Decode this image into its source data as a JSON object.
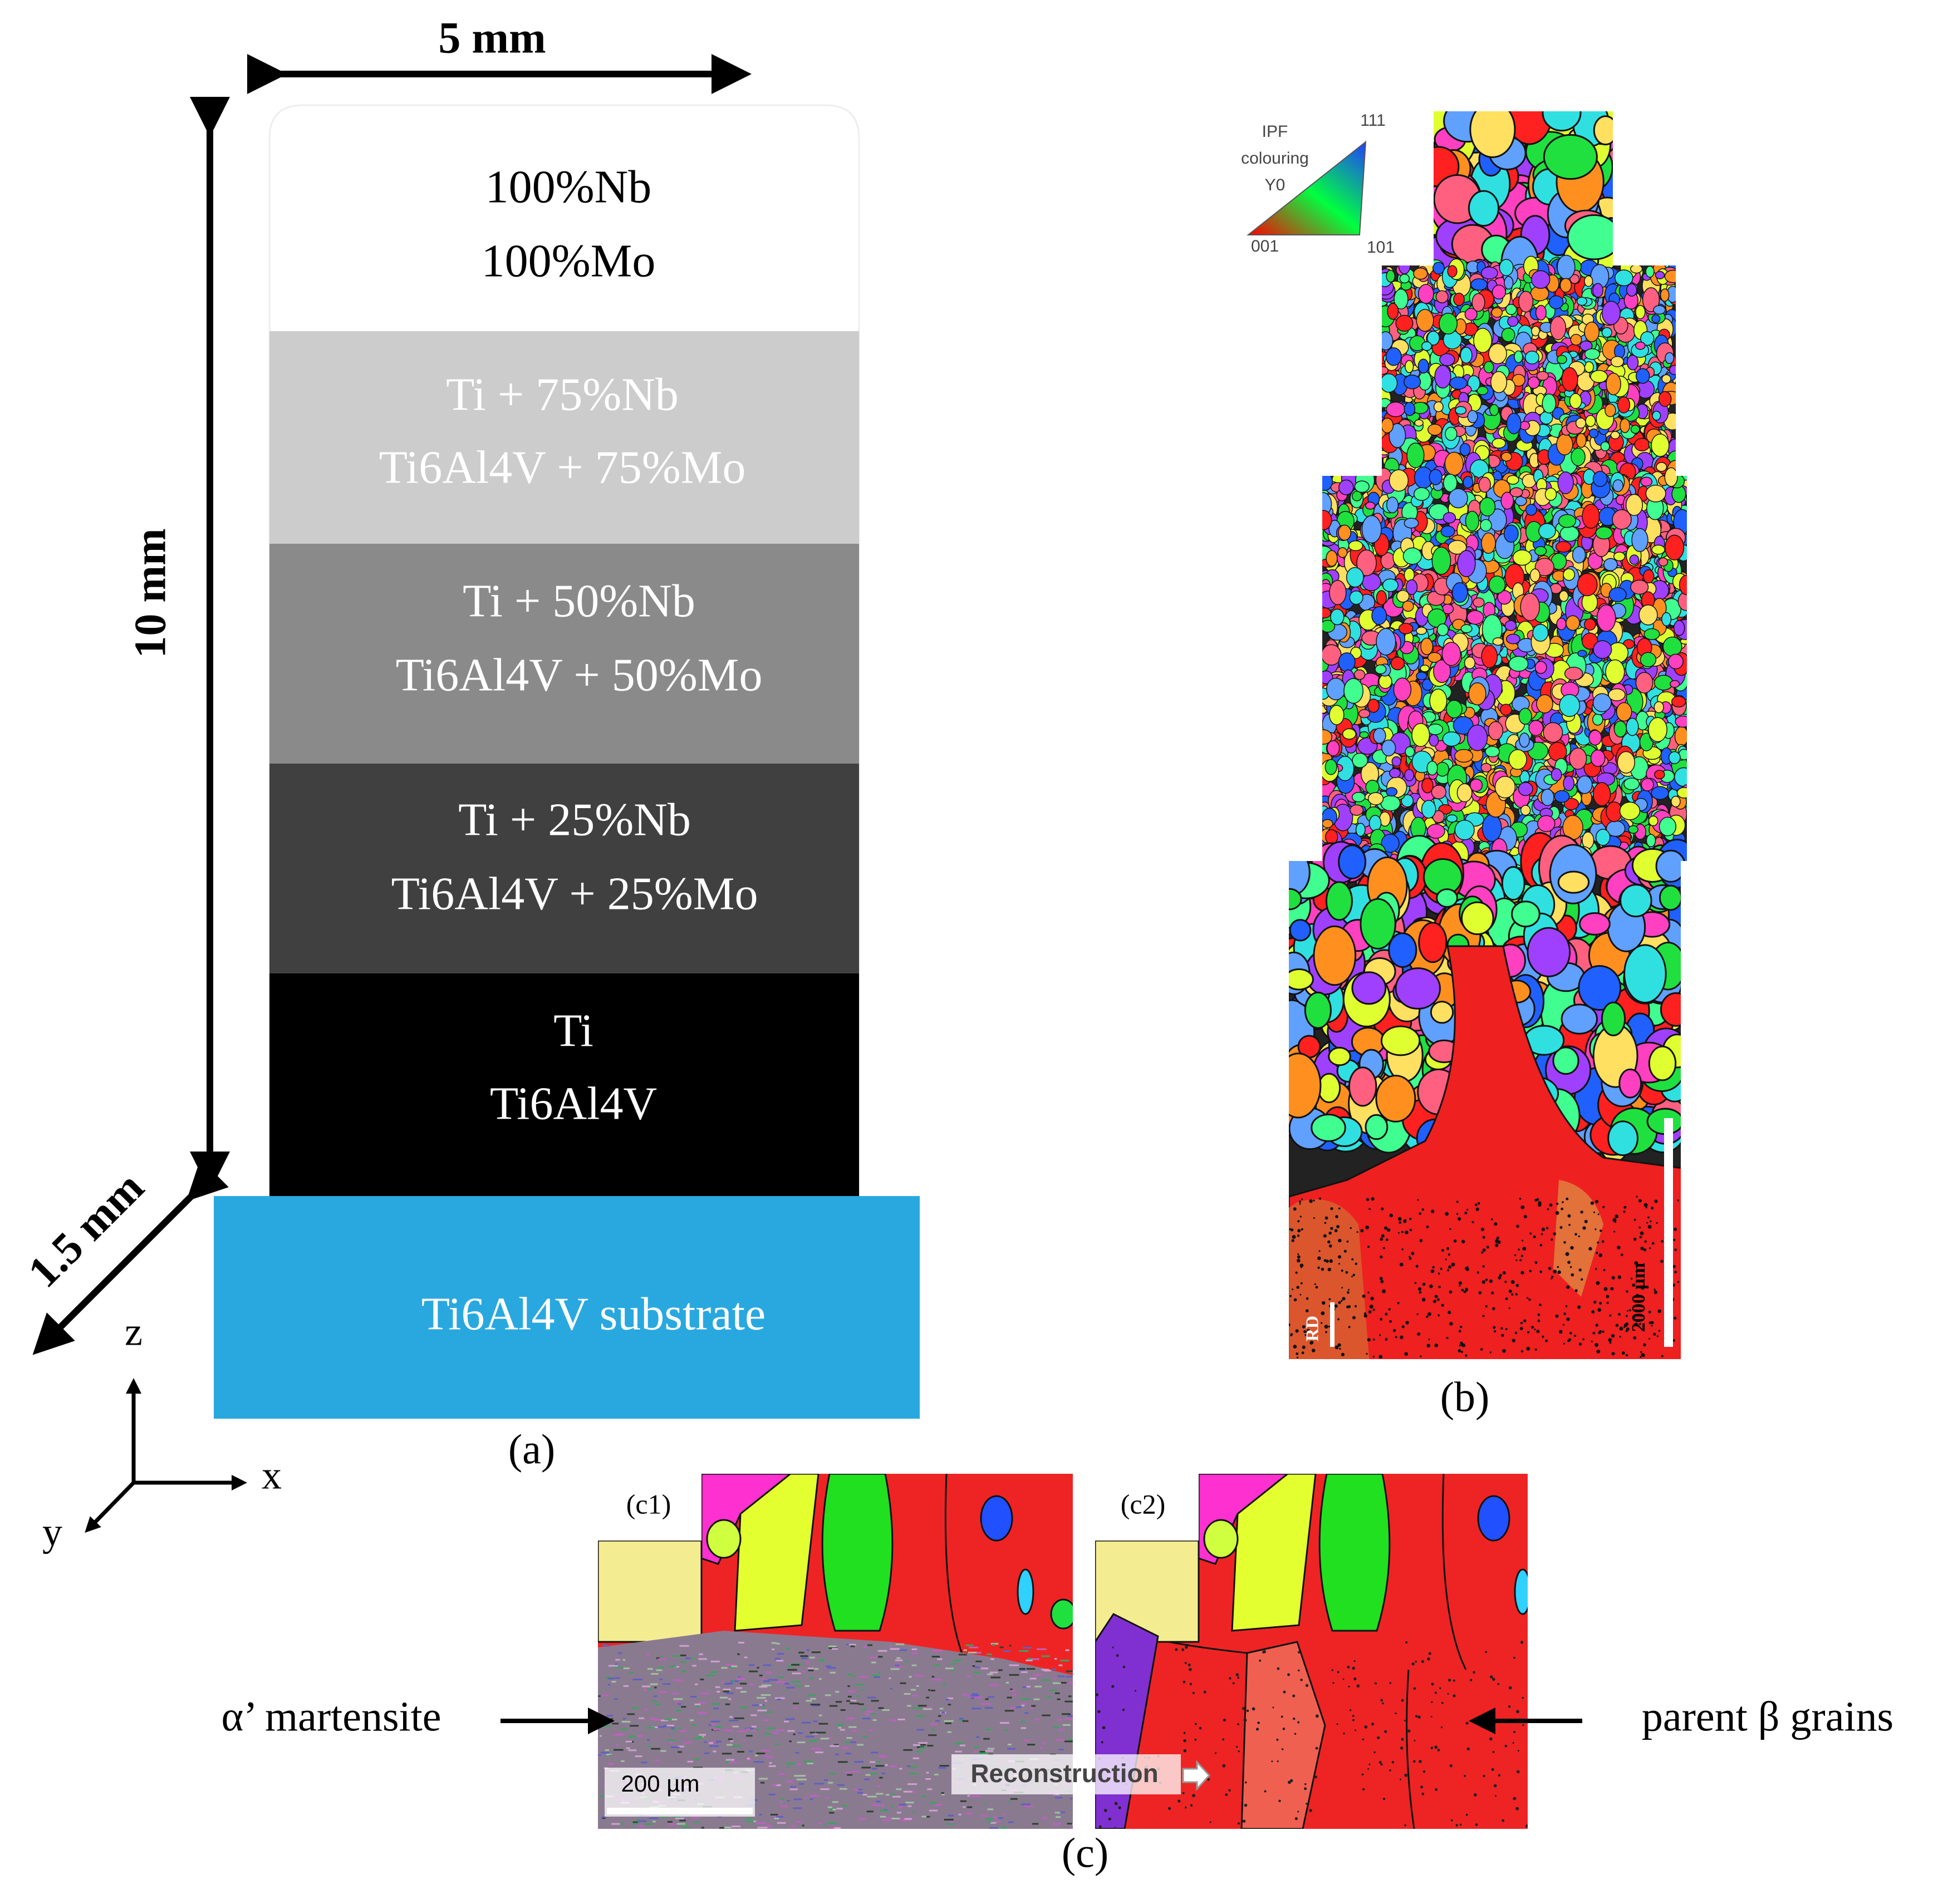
{
  "panel_a": {
    "width_label": "5 mm",
    "height_label": "10 mm",
    "depth_label": "1.5 mm",
    "layers": [
      {
        "lines": [
          "100%Nb",
          "100%Mo"
        ]
      },
      {
        "lines": [
          "Ti + 75%Nb",
          "Ti6Al4V + 75%Mo"
        ]
      },
      {
        "lines": [
          "Ti + 50%Nb",
          "Ti6Al4V + 50%Mo"
        ]
      },
      {
        "lines": [
          "Ti + 25%Nb",
          "Ti6Al4V + 25%Mo"
        ]
      },
      {
        "lines": [
          "Ti",
          "Ti6Al4V"
        ]
      }
    ],
    "substrate": "Ti6Al4V substrate",
    "axes": {
      "z": "z",
      "x": "x",
      "y": "y"
    },
    "caption": "(a)"
  },
  "panel_b": {
    "legend": {
      "title": [
        "IPF",
        "colouring",
        "Y0"
      ],
      "corner_111": "111",
      "corner_001": "001",
      "corner_101": "101"
    },
    "scale_bar": "2000 µm",
    "direction": "RD",
    "caption": "(b)"
  },
  "panel_c": {
    "label_c1": "(c1)",
    "label_c2": "(c2)",
    "scale_bar": "200 µm",
    "step": "Reconstruction",
    "left_note": "α’ martensite",
    "right_note": "parent β grains",
    "caption": "(c)"
  }
}
